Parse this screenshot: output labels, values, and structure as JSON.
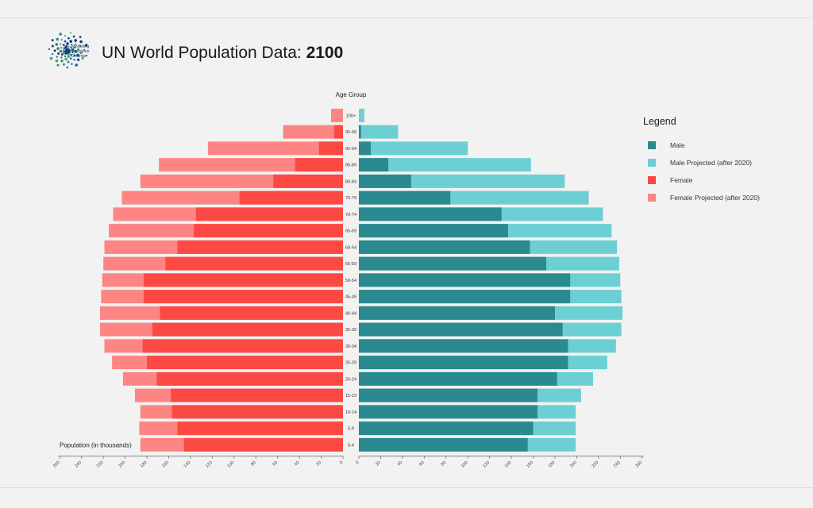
{
  "header": {
    "logo_lines": [
      "Modeling",
      "Religious",
      "Change"
    ],
    "title_prefix": "UN World Population Data: ",
    "title_year": "2100"
  },
  "legend": {
    "title": "Legend",
    "items": [
      {
        "label": "Male",
        "color": "#2a8a8f"
      },
      {
        "label": "Male Projected (after 2020)",
        "color": "#6ccfd4"
      },
      {
        "label": "Female",
        "color": "#fd4943"
      },
      {
        "label": "Female Projected (after 2020)",
        "color": "#fd8583"
      }
    ]
  },
  "chart_data": {
    "type": "bar",
    "orientation": "horizontal-population-pyramid",
    "age_axis_label": "Age Group",
    "value_axis_label": "Population (in thousands)",
    "categories": [
      "100+",
      "95-99",
      "90-94",
      "85-89",
      "80-84",
      "75-79",
      "70-74",
      "65-69",
      "60-64",
      "55-59",
      "50-54",
      "45-49",
      "40-44",
      "35-39",
      "30-34",
      "25-29",
      "20-24",
      "15-19",
      "10-14",
      "5-9",
      "0-4"
    ],
    "xlim": [
      0,
      260
    ],
    "ticks": [
      0,
      20,
      40,
      60,
      80,
      100,
      120,
      140,
      160,
      180,
      200,
      220,
      240,
      260
    ],
    "series": [
      {
        "name": "Male",
        "side": "right",
        "color": "#2a8a8f",
        "values": [
          0,
          2,
          11,
          27,
          48,
          84,
          131,
          137,
          157,
          172,
          194,
          194,
          180,
          187,
          192,
          192,
          182,
          164,
          164,
          160,
          155
        ]
      },
      {
        "name": "Male Projected (after 2020)",
        "side": "right",
        "color": "#6ccfd4",
        "values": [
          5,
          36,
          100,
          158,
          189,
          211,
          224,
          232,
          237,
          239,
          240,
          241,
          242,
          241,
          236,
          228,
          215,
          204,
          199,
          199,
          199
        ]
      },
      {
        "name": "Female",
        "side": "left",
        "color": "#fd4943",
        "values": [
          0,
          8,
          22,
          44,
          64,
          95,
          135,
          137,
          152,
          163,
          183,
          183,
          168,
          175,
          184,
          180,
          171,
          158,
          157,
          152,
          146
        ]
      },
      {
        "name": "Female Projected (after 2020)",
        "side": "left",
        "color": "#fd8583",
        "values": [
          11,
          55,
          124,
          169,
          186,
          203,
          211,
          215,
          219,
          220,
          221,
          222,
          223,
          223,
          219,
          212,
          202,
          191,
          186,
          187,
          186
        ]
      }
    ]
  }
}
